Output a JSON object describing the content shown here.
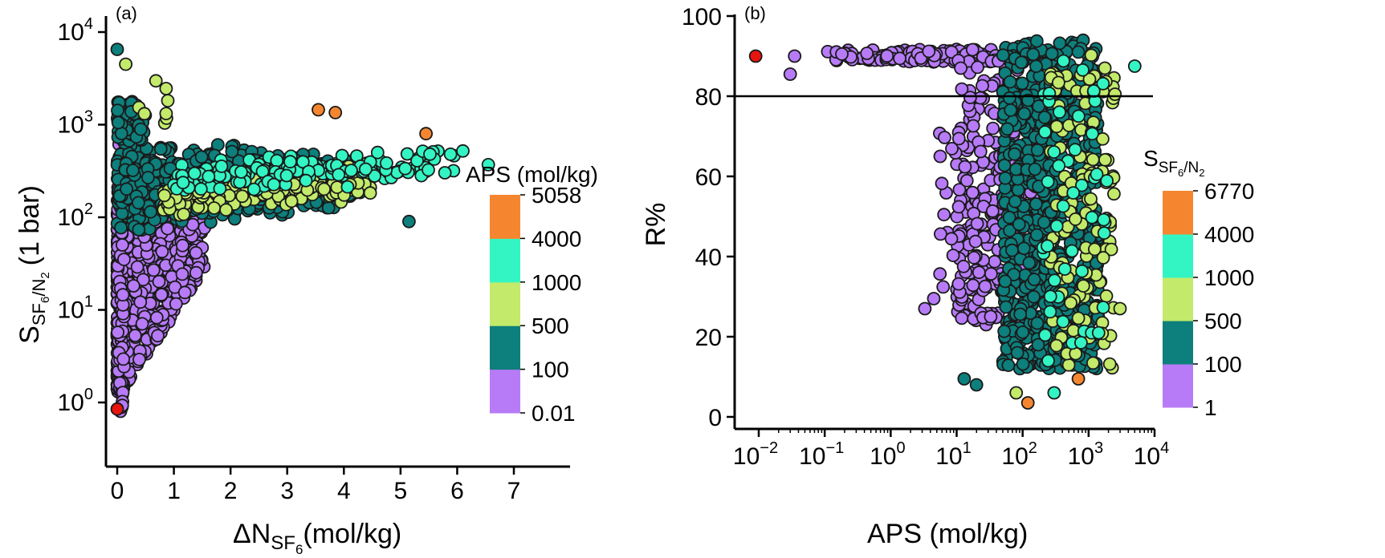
{
  "chart_data": [
    {
      "type": "scatter",
      "panel_label": "(a)",
      "xlabel": {
        "main": "ΔN",
        "sub": "SF",
        "subsub": "6",
        "tail": "(mol/kg)"
      },
      "ylabel": {
        "main": "S",
        "sub": "SF",
        "subsub1": "6",
        "slash": "/N",
        "subsub2": "2",
        "tail": "(1 bar)"
      },
      "xlim": [
        -0.2,
        7
      ],
      "xticks": [
        0,
        1,
        2,
        3,
        4,
        5,
        6,
        7
      ],
      "ylim_log10": [
        -0.3,
        4
      ],
      "yscale": "log",
      "yticks": [
        {
          "base": "10",
          "exp": "0",
          "value": 0
        },
        {
          "base": "10",
          "exp": "1",
          "value": 1
        },
        {
          "base": "10",
          "exp": "2",
          "value": 2
        },
        {
          "base": "10",
          "exp": "3",
          "value": 3
        },
        {
          "base": "10",
          "exp": "4",
          "value": 4
        }
      ],
      "grid": false,
      "colorbar": {
        "title": "APS (mol/kg)",
        "ticks": [
          "0.01",
          "100",
          "500",
          "1000",
          "4000",
          "5058"
        ],
        "colors": [
          "#b77bf7",
          "#0d7f7c",
          "#c3ea6a",
          "#33f5c3",
          "#f5862f"
        ]
      },
      "highlight_points": [
        {
          "x": 0.0,
          "y": 0.85,
          "color": "#e8150f"
        }
      ],
      "extreme_points": [
        {
          "x": 3.55,
          "y": 1450,
          "color": "#f5862f"
        },
        {
          "x": 3.85,
          "y": 1350,
          "color": "#f5862f"
        },
        {
          "x": 5.45,
          "y": 800,
          "color": "#f5862f"
        },
        {
          "x": 0.0,
          "y": 6500,
          "color": "#0d7f7c"
        },
        {
          "x": 0.15,
          "y": 4500,
          "color": "#c3ea6a"
        },
        {
          "x": 6.55,
          "y": 370,
          "color": "#33f5c3"
        },
        {
          "x": 6.1,
          "y": 520,
          "color": "#33f5c3"
        },
        {
          "x": 5.15,
          "y": 90,
          "color": "#0d7f7c"
        }
      ]
    },
    {
      "type": "scatter",
      "panel_label": "(b)",
      "xlabel": {
        "main": "APS (mol/kg)"
      },
      "ylabel": {
        "main": "R%"
      },
      "xscale": "log",
      "xlim_log10": [
        -2.5,
        4
      ],
      "xticks": [
        {
          "base": "10",
          "exp": "−2",
          "value": -2
        },
        {
          "base": "10",
          "exp": "−1",
          "value": -1
        },
        {
          "base": "10",
          "exp": "0",
          "value": 0
        },
        {
          "base": "10",
          "exp": "1",
          "value": 1
        },
        {
          "base": "10",
          "exp": "2",
          "value": 2
        },
        {
          "base": "10",
          "exp": "3",
          "value": 3
        },
        {
          "base": "10",
          "exp": "4",
          "value": 4
        }
      ],
      "ylim": [
        0,
        100
      ],
      "yticks": [
        0,
        20,
        40,
        60,
        80,
        100
      ],
      "reference_line_y": 80,
      "grid": false,
      "colorbar": {
        "title": {
          "main": "S",
          "sub": "SF",
          "subsub1": "6",
          "slash": "/N",
          "subsub2": "2"
        },
        "ticks": [
          "1",
          "100",
          "500",
          "1000",
          "4000",
          "6770"
        ],
        "colors": [
          "#b77bf7",
          "#0d7f7c",
          "#c3ea6a",
          "#33f5c3",
          "#f5862f"
        ]
      },
      "highlight_points": [
        {
          "x": 0.009,
          "y": 90,
          "color": "#e8150f"
        }
      ],
      "extreme_points": [
        {
          "x": 0.035,
          "y": 90,
          "color": "#b77bf7"
        },
        {
          "x": 0.03,
          "y": 85.5,
          "color": "#b77bf7"
        },
        {
          "x": 120,
          "y": 3.5,
          "color": "#f5862f"
        },
        {
          "x": 700,
          "y": 9.5,
          "color": "#f5862f"
        },
        {
          "x": 5000,
          "y": 87.5,
          "color": "#33f5c3"
        },
        {
          "x": 3000,
          "y": 27,
          "color": "#c3ea6a"
        },
        {
          "x": 3.3,
          "y": 27,
          "color": "#b77bf7"
        },
        {
          "x": 4.5,
          "y": 29.5,
          "color": "#b77bf7"
        },
        {
          "x": 13,
          "y": 9.5,
          "color": "#0d7f7c"
        },
        {
          "x": 20,
          "y": 8,
          "color": "#0d7f7c"
        },
        {
          "x": 80,
          "y": 6,
          "color": "#c3ea6a"
        },
        {
          "x": 300,
          "y": 6,
          "color": "#33f5c3"
        }
      ]
    }
  ]
}
